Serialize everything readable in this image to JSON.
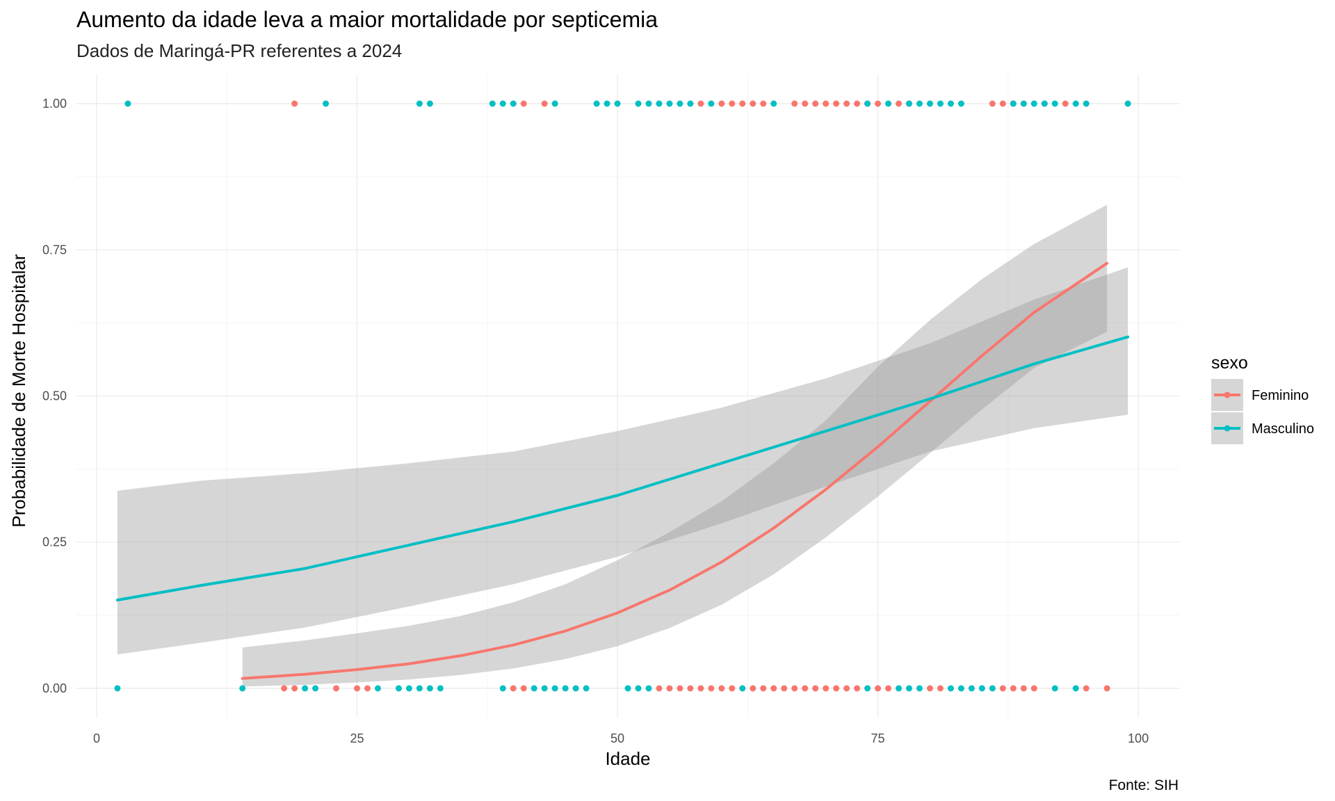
{
  "chart_data": {
    "type": "scatter",
    "title": "Aumento da idade leva a maior mortalidade por septicemia",
    "subtitle": "Dados de Maringá-PR referentes a 2024",
    "caption": "Fonte: SIH",
    "xlabel": "Idade",
    "ylabel": "Probabilidade de Morte Hospitalar",
    "xlim": [
      -2,
      104
    ],
    "ylim": [
      -0.05,
      1.05
    ],
    "x_ticks": [
      0,
      25,
      50,
      75,
      100
    ],
    "x_tick_labels": [
      "0",
      "25",
      "50",
      "75",
      "100"
    ],
    "y_ticks": [
      0,
      0.25,
      0.5,
      0.75,
      1
    ],
    "y_tick_labels": [
      "0.00",
      "0.25",
      "0.50",
      "0.75",
      "1.00"
    ],
    "grid": true,
    "legend": {
      "title": "sexo",
      "position": "right"
    },
    "series": [
      {
        "name": "Feminino",
        "color": "#F8766D",
        "points_death": [
          19,
          41,
          43,
          58,
          60,
          61,
          62,
          63,
          64,
          67,
          68,
          69,
          70,
          71,
          72,
          73,
          74,
          75,
          77,
          78,
          86,
          87,
          88,
          89,
          91,
          93
        ],
        "points_survived": [
          18,
          19,
          23,
          25,
          26,
          40,
          41,
          54,
          55,
          56,
          57,
          58,
          59,
          60,
          61,
          63,
          64,
          65,
          66,
          67,
          68,
          69,
          70,
          71,
          72,
          73,
          75,
          76,
          80,
          81,
          87,
          88,
          89,
          90,
          95,
          97
        ],
        "fit": {
          "x": [
            14,
            20,
            25,
            30,
            35,
            40,
            45,
            50,
            55,
            60,
            65,
            70,
            75,
            80,
            85,
            90,
            97
          ],
          "y": [
            0.017,
            0.024,
            0.032,
            0.042,
            0.056,
            0.074,
            0.098,
            0.129,
            0.168,
            0.216,
            0.274,
            0.34,
            0.413,
            0.491,
            0.569,
            0.643,
            0.727
          ],
          "lower": [
            0.003,
            0.006,
            0.01,
            0.015,
            0.023,
            0.034,
            0.05,
            0.072,
            0.103,
            0.143,
            0.195,
            0.258,
            0.328,
            0.402,
            0.477,
            0.548,
            0.61
          ],
          "upper": [
            0.07,
            0.082,
            0.094,
            0.107,
            0.124,
            0.147,
            0.178,
            0.219,
            0.267,
            0.32,
            0.385,
            0.458,
            0.55,
            0.63,
            0.7,
            0.76,
            0.827
          ]
        }
      },
      {
        "name": "Masculino",
        "color": "#00BFC4",
        "points_death": [
          3,
          22,
          31,
          32,
          38,
          39,
          40,
          44,
          48,
          49,
          50,
          52,
          53,
          54,
          55,
          56,
          57,
          59,
          65,
          74,
          76,
          78,
          79,
          80,
          81,
          82,
          83,
          88,
          89,
          90,
          91,
          92,
          94,
          95,
          99
        ],
        "points_survived": [
          2,
          14,
          20,
          21,
          27,
          29,
          30,
          31,
          32,
          33,
          39,
          42,
          43,
          44,
          45,
          46,
          47,
          51,
          52,
          53,
          62,
          74,
          77,
          78,
          79,
          82,
          83,
          84,
          85,
          86,
          92,
          94
        ],
        "fit": {
          "x": [
            2,
            10,
            20,
            30,
            40,
            50,
            60,
            70,
            80,
            90,
            99
          ],
          "y": [
            0.151,
            0.176,
            0.205,
            0.245,
            0.285,
            0.33,
            0.385,
            0.44,
            0.495,
            0.555,
            0.601
          ],
          "lower": [
            0.058,
            0.078,
            0.104,
            0.14,
            0.178,
            0.225,
            0.282,
            0.345,
            0.405,
            0.445,
            0.468
          ],
          "upper": [
            0.338,
            0.355,
            0.368,
            0.385,
            0.405,
            0.44,
            0.48,
            0.53,
            0.59,
            0.665,
            0.72
          ]
        }
      }
    ]
  }
}
